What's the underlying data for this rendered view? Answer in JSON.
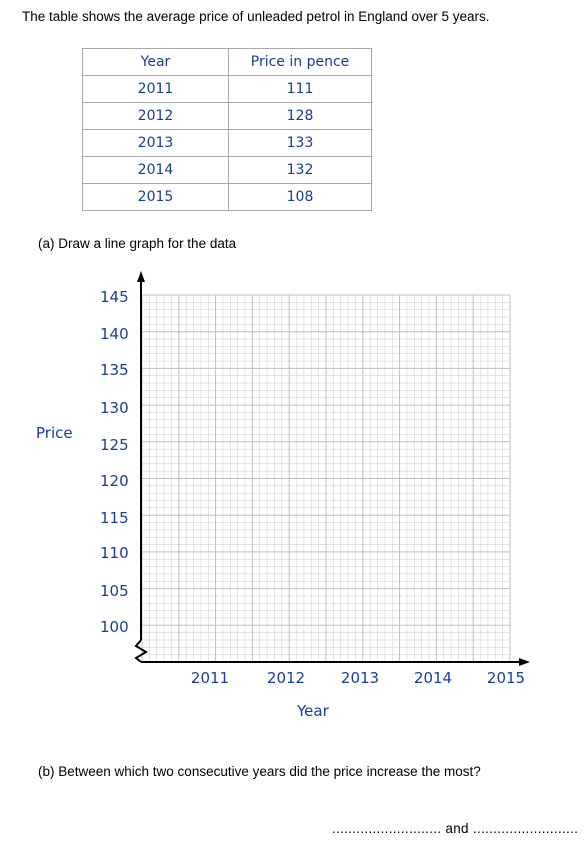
{
  "intro": "The table shows the average price of unleaded petrol in England over 5 years.",
  "table": {
    "headers": [
      "Year",
      "Price in pence"
    ],
    "rows": [
      [
        "2011",
        "111"
      ],
      [
        "2012",
        "128"
      ],
      [
        "2013",
        "133"
      ],
      [
        "2014",
        "132"
      ],
      [
        "2015",
        "108"
      ]
    ]
  },
  "part_a": "(a) Draw a line graph for the data",
  "graph": {
    "y_label": "Price",
    "x_label": "Year",
    "y_ticks": [
      "145",
      "140",
      "135",
      "130",
      "125",
      "120",
      "115",
      "110",
      "105",
      "100"
    ],
    "x_ticks": [
      "2011",
      "2012",
      "2013",
      "2014",
      "2015"
    ]
  },
  "part_b": "(b) Between which two consecutive years did the price increase the most?",
  "answer_line": "........................... and ..........................",
  "colors": {
    "handwriting": "#1a3c9a",
    "grid": "#bfbfbf"
  }
}
